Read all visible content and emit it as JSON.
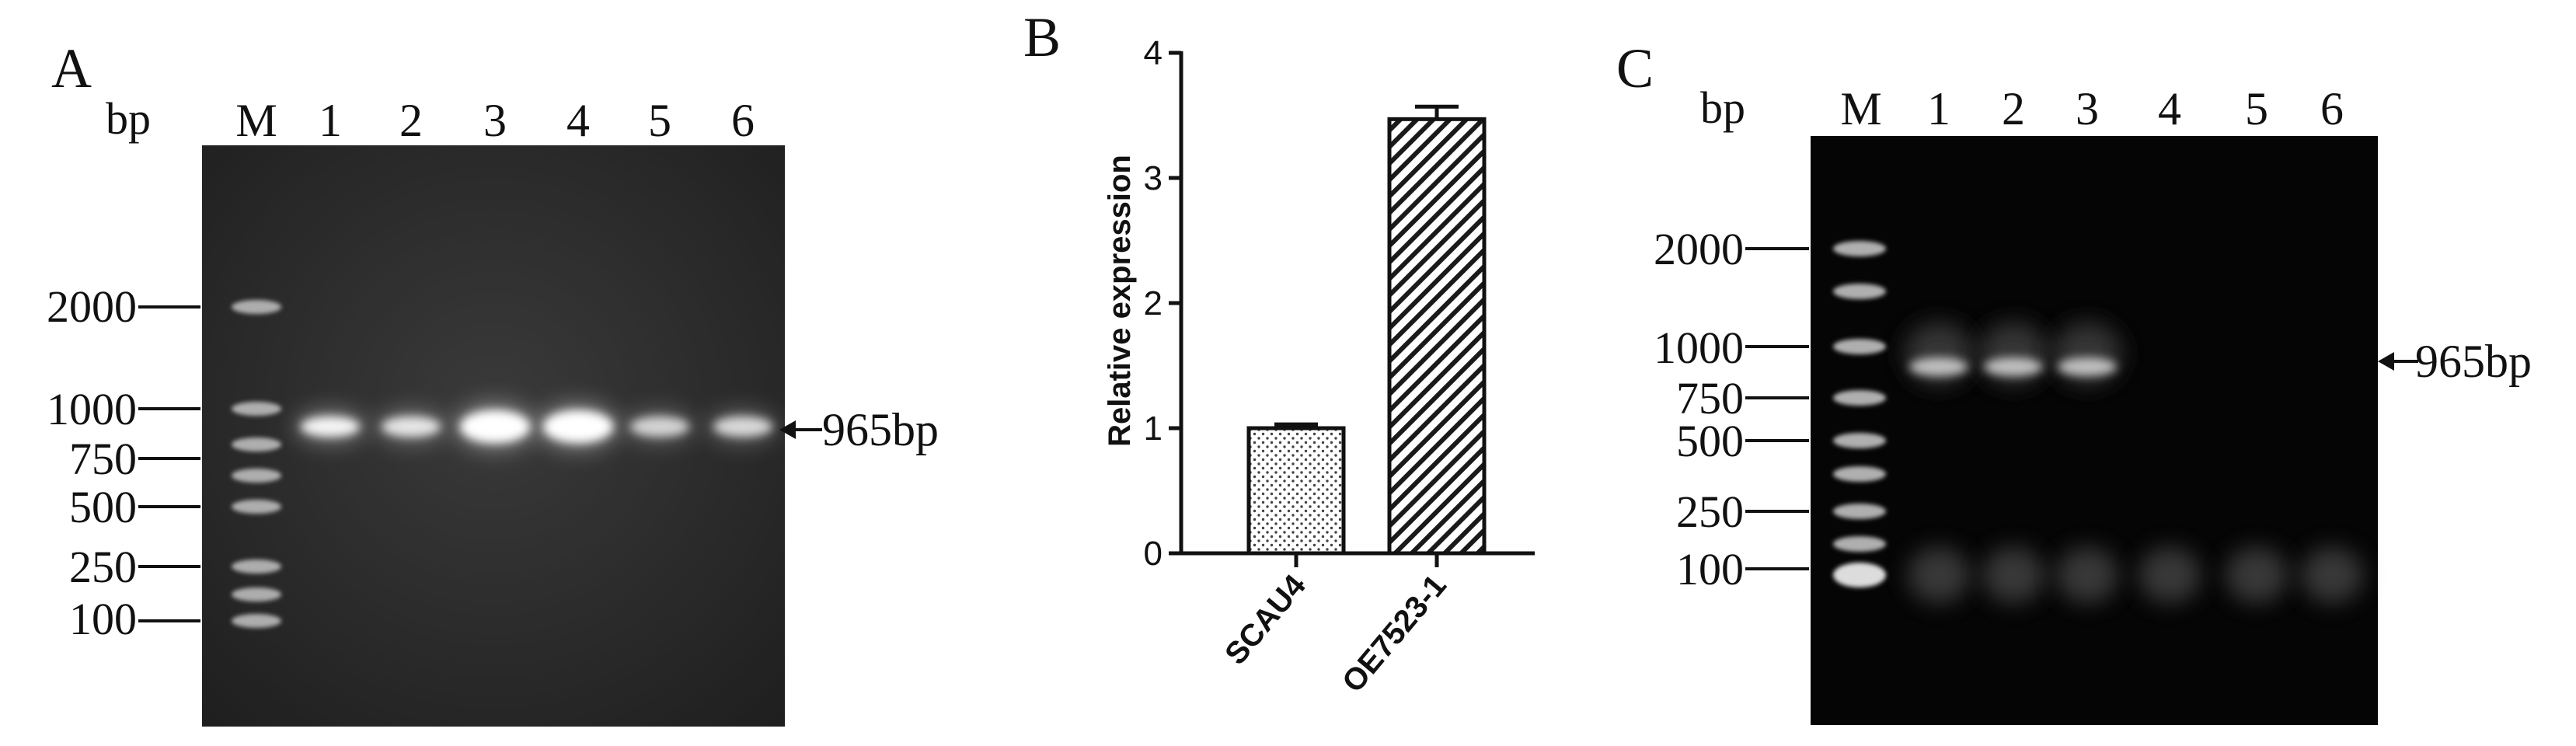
{
  "panels": {
    "A": {
      "letter": "A",
      "unit_label": "bp",
      "lane_labels": [
        "M",
        "1",
        "2",
        "3",
        "4",
        "5",
        "6"
      ],
      "marker_labels": [
        "2000",
        "1000",
        "750",
        "500",
        "250",
        "100"
      ],
      "band_annotation": "965bp",
      "band_intensity": [
        0.9,
        0.75,
        1.0,
        1.0,
        0.6,
        0.65
      ]
    },
    "B": {
      "letter": "B"
    },
    "C": {
      "letter": "C",
      "unit_label": "bp",
      "lane_labels": [
        "M",
        "1",
        "2",
        "3",
        "4",
        "5",
        "6"
      ],
      "marker_labels": [
        "2000",
        "1000",
        "750",
        "500",
        "250",
        "100"
      ],
      "band_annotation": "965bp",
      "band_intensity": [
        0.55,
        0.55,
        0.55,
        0,
        0,
        0
      ]
    }
  },
  "chart_data": {
    "type": "bar",
    "categories": [
      "SCAU4",
      "OE7523-1"
    ],
    "values": [
      1.0,
      3.47
    ],
    "error": [
      0.03,
      0.1
    ],
    "patterns": [
      "dots",
      "diagonal-hatch"
    ],
    "ylabel": "Relative expression",
    "xlabel": "",
    "ylim": [
      0,
      4
    ],
    "yticks": [
      "0",
      "1",
      "2",
      "3",
      "4"
    ],
    "grid": false
  }
}
